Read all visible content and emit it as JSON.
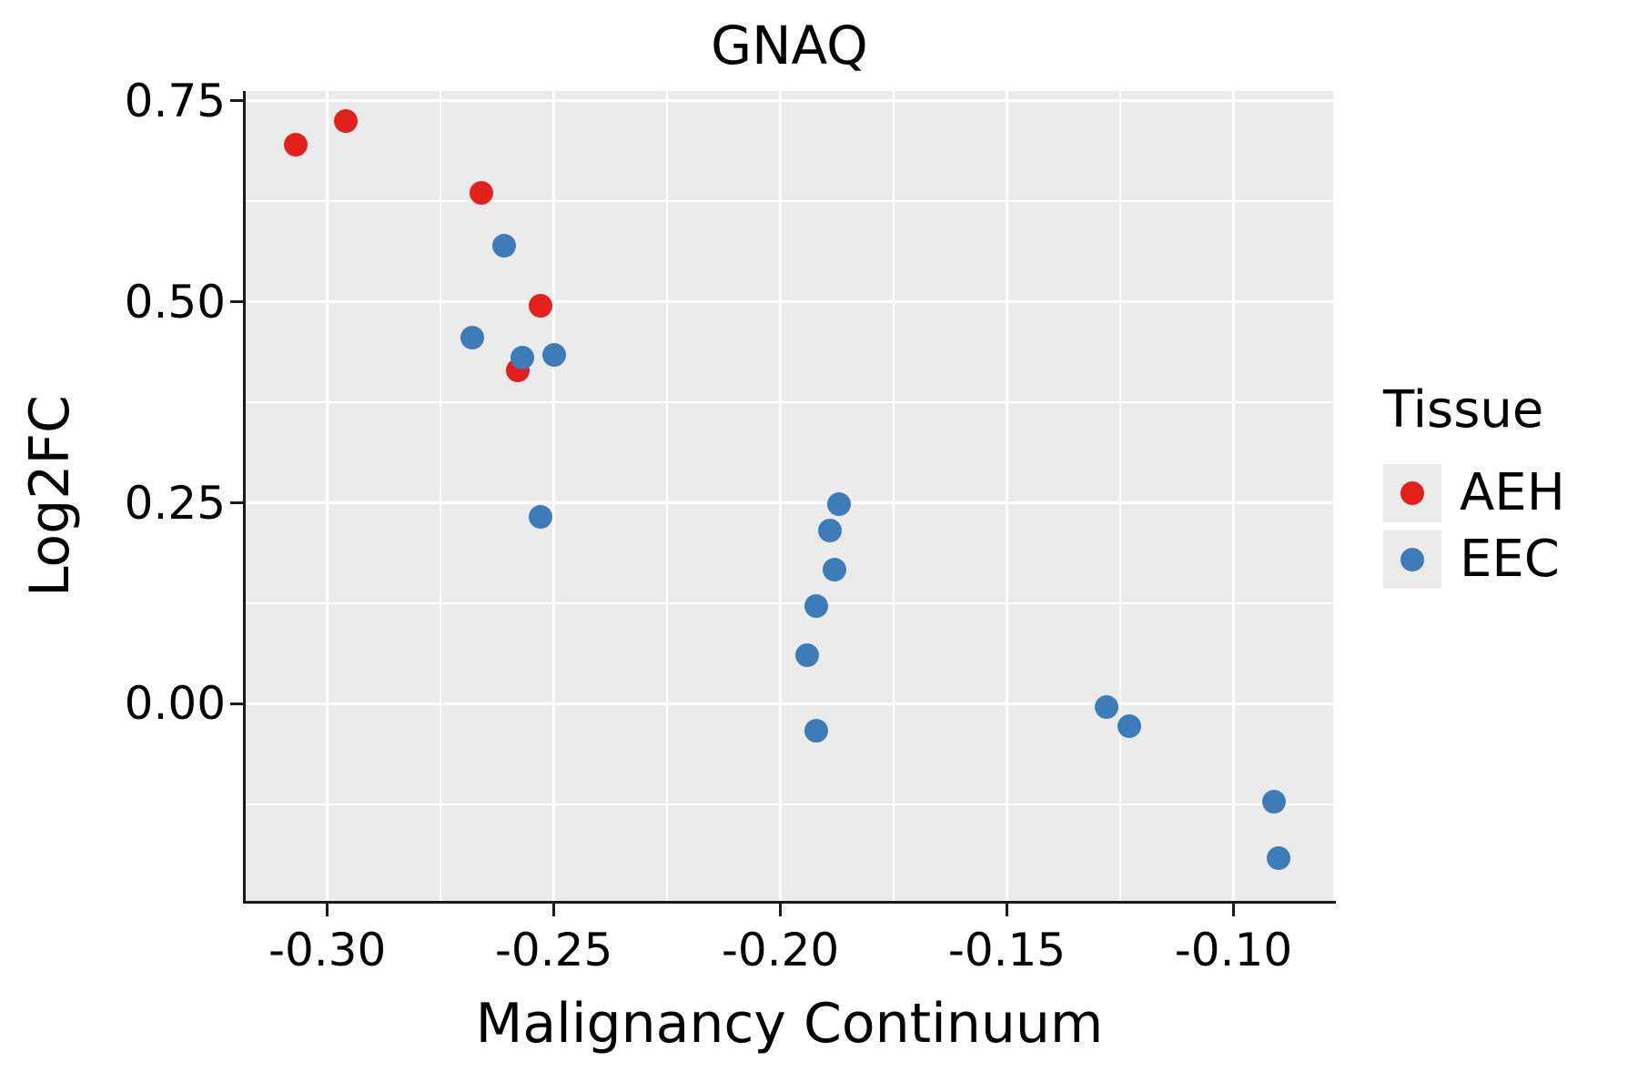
{
  "chart_data": {
    "type": "scatter",
    "title": "GNAQ",
    "xlabel": "Malignancy Continuum",
    "ylabel": "Log2FC",
    "xlim": [
      -0.318,
      -0.078
    ],
    "ylim": [
      -0.245,
      0.762
    ],
    "x_ticks": [
      {
        "value": -0.3,
        "label": "-0.30"
      },
      {
        "value": -0.25,
        "label": "-0.25"
      },
      {
        "value": -0.2,
        "label": "-0.20"
      },
      {
        "value": -0.15,
        "label": "-0.15"
      },
      {
        "value": -0.1,
        "label": "-0.10"
      }
    ],
    "x_minor_ticks": [
      -0.275,
      -0.225,
      -0.175,
      -0.125
    ],
    "y_ticks": [
      {
        "value": 0.0,
        "label": "0.00"
      },
      {
        "value": 0.25,
        "label": "0.25"
      },
      {
        "value": 0.5,
        "label": "0.50"
      },
      {
        "value": 0.75,
        "label": "0.75"
      }
    ],
    "y_minor_ticks": [
      -0.125,
      0.125,
      0.375,
      0.625
    ],
    "grid": "major+minor",
    "panel_background": "#EBEBEB",
    "gridline_color": "#FFFFFF",
    "legend": {
      "title": "Tissue",
      "position": "right",
      "entries": [
        {
          "label": "AEH",
          "color": "#E2201C"
        },
        {
          "label": "EEC",
          "color": "#3D7CB8"
        }
      ]
    },
    "series": [
      {
        "name": "AEH",
        "color": "#E2201C",
        "points": [
          [
            -0.307,
            0.695
          ],
          [
            -0.296,
            0.725
          ],
          [
            -0.266,
            0.635
          ],
          [
            -0.253,
            0.495
          ],
          [
            -0.258,
            0.415
          ]
        ]
      },
      {
        "name": "EEC",
        "color": "#3D7CB8",
        "points": [
          [
            -0.261,
            0.57
          ],
          [
            -0.268,
            0.455
          ],
          [
            -0.257,
            0.43
          ],
          [
            -0.25,
            0.434
          ],
          [
            -0.253,
            0.233
          ],
          [
            -0.187,
            0.248
          ],
          [
            -0.189,
            0.215
          ],
          [
            -0.188,
            0.167
          ],
          [
            -0.192,
            0.122
          ],
          [
            -0.194,
            0.06
          ],
          [
            -0.192,
            -0.033
          ],
          [
            -0.128,
            -0.004
          ],
          [
            -0.123,
            -0.028
          ],
          [
            -0.091,
            -0.122
          ],
          [
            -0.09,
            -0.192
          ]
        ]
      }
    ]
  }
}
